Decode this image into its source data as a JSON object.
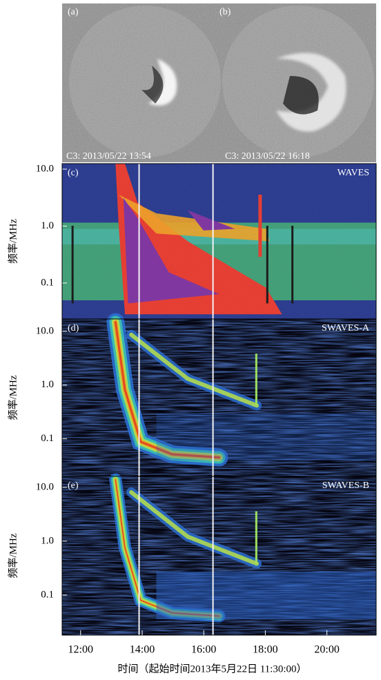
{
  "images": {
    "panels": [
      {
        "label": "(a)",
        "caption": "C3: 2013/05/22 13:54"
      },
      {
        "label": "(b)",
        "caption": "C3: 2013/05/22 16:18"
      }
    ]
  },
  "chart_data": [
    {
      "type": "spectrogram",
      "panel_label": "(c)",
      "title": "WAVES",
      "y_label": "频率/MHz",
      "log_y": true,
      "ylim": [
        0.0234,
        12.5
      ],
      "yticks": [
        {
          "value": 10,
          "label": "10.0"
        },
        {
          "value": 1,
          "label": "1.0"
        },
        0.1
      ],
      "xlim": [
        11.4,
        21.6
      ],
      "vlines": [
        13.9,
        16.3
      ]
    },
    {
      "type": "spectrogram",
      "panel_label": "(d)",
      "title": "SWAVES-A",
      "y_label": "频率/MHz",
      "log_y": true,
      "ylim": [
        0.02,
        17
      ],
      "yticks": [
        {
          "value": 10,
          "label": "10.0"
        },
        {
          "value": 1,
          "label": "1.0"
        },
        0.1
      ],
      "xlim": [
        11.4,
        21.6
      ],
      "vlines": [
        13.9,
        16.3
      ]
    },
    {
      "type": "spectrogram",
      "panel_label": "(e)",
      "title": "SWAVES-B",
      "y_label": "频率/MHz",
      "log_y": true,
      "ylim": [
        0.018,
        16
      ],
      "yticks": [
        {
          "value": 10,
          "label": "10.0"
        },
        {
          "value": 1,
          "label": "1.0"
        },
        0.1
      ],
      "xlim": [
        11.4,
        21.6
      ],
      "vlines": [
        13.9,
        16.3
      ],
      "xticks": [
        {
          "value": 12,
          "label": "12:00"
        },
        {
          "value": 14,
          "label": "14:00"
        },
        {
          "value": 16,
          "label": "16:00"
        },
        {
          "value": 18,
          "label": "18:00"
        },
        {
          "value": 20,
          "label": "20:00"
        }
      ],
      "x_label": "时间（起始时间2013年5月22日 11:30:00）"
    }
  ]
}
